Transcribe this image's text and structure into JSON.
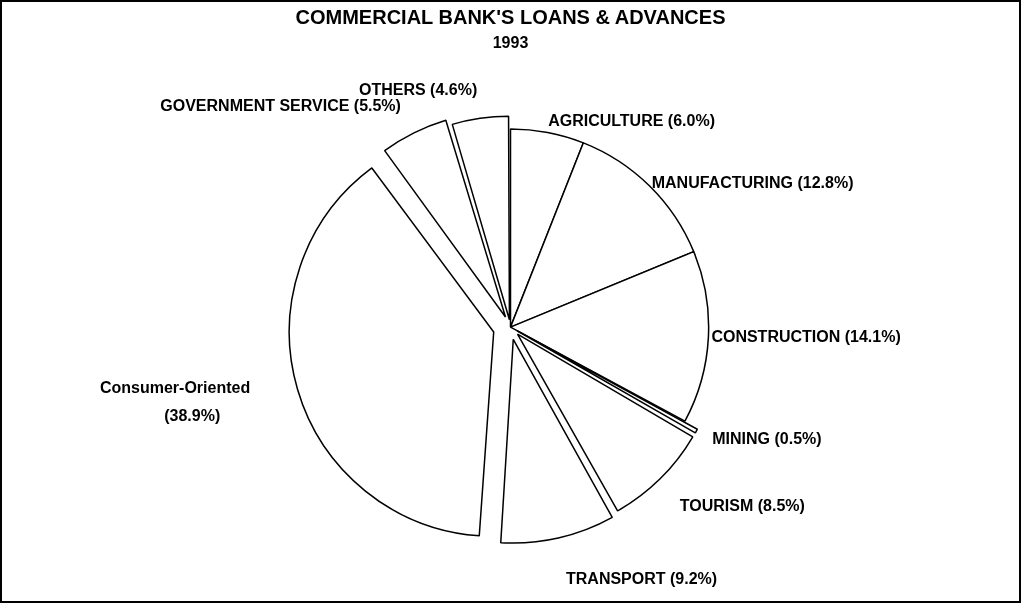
{
  "chart_data": {
    "type": "pie",
    "title": "COMMERCIAL BANK'S LOANS & ADVANCES",
    "subtitle": "1993",
    "categories": [
      "AGRICULTURE",
      "MANUFACTURING",
      "CONSTRUCTION",
      "MINING",
      "TOURISM",
      "TRANSPORT",
      "Consumer-Oriented",
      "GOVERNMENT SERVICE",
      "OTHERS"
    ],
    "values": [
      6.0,
      12.8,
      14.1,
      0.5,
      8.5,
      9.2,
      38.9,
      5.5,
      4.6
    ],
    "value_labels": [
      "(6.0%)",
      "(12.8%)",
      "(14.1%)",
      "(0.5%)",
      "(8.5%)",
      "(9.2%)",
      "(38.9%)",
      "(5.5%)",
      "(4.6%)"
    ],
    "colors": [
      "#ffffff",
      "#ffffff",
      "#ffffff",
      "#ffffff",
      "#ffffff",
      "#ffffff",
      "#ffffff",
      "#ffffff",
      "#ffffff"
    ],
    "legend": false
  }
}
